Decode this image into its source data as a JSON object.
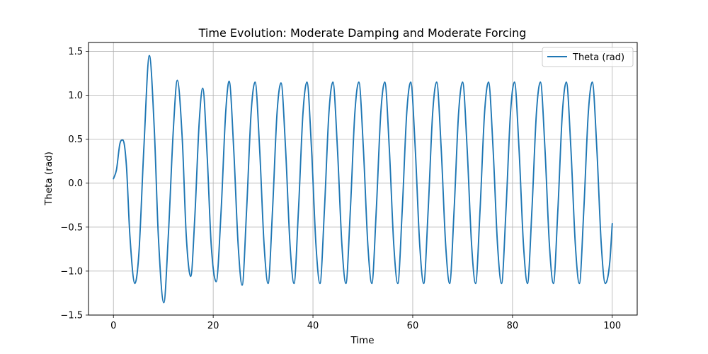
{
  "chart_data": {
    "type": "line",
    "title": "Time Evolution: Moderate Damping and Moderate Forcing",
    "xlabel": "Time",
    "ylabel": "Theta (rad)",
    "xlim": [
      -5,
      105
    ],
    "ylim": [
      -1.5,
      1.6
    ],
    "xticks": [
      0,
      20,
      40,
      60,
      80,
      100
    ],
    "yticks": [
      -1.5,
      -1.0,
      -0.5,
      0.0,
      0.5,
      1.0,
      1.5
    ],
    "xtick_labels": [
      "0",
      "20",
      "40",
      "60",
      "80",
      "100"
    ],
    "ytick_labels": [
      "−1.5",
      "−1.0",
      "−0.5",
      "0.0",
      "0.5",
      "1.0",
      "1.5"
    ],
    "grid": true,
    "legend_position": "top-right",
    "series": [
      {
        "name": "Theta (rad)",
        "color": "#1f77b4",
        "points": [
          [
            0,
            0.05
          ],
          [
            0.6,
            0.15
          ],
          [
            1.3,
            0.45
          ],
          [
            1.9,
            0.49
          ],
          [
            2.6,
            0.2
          ],
          [
            3.3,
            -0.6
          ],
          [
            4.3,
            -1.14
          ],
          [
            5.1,
            -0.8
          ],
          [
            6.1,
            0.4
          ],
          [
            7.2,
            1.45
          ],
          [
            8.2,
            0.6
          ],
          [
            9.0,
            -0.6
          ],
          [
            10.1,
            -1.36
          ],
          [
            11.0,
            -0.6
          ],
          [
            12.0,
            0.6
          ],
          [
            12.8,
            1.17
          ],
          [
            13.8,
            0.5
          ],
          [
            14.6,
            -0.6
          ],
          [
            15.5,
            -1.06
          ],
          [
            16.3,
            -0.4
          ],
          [
            17.2,
            0.7
          ],
          [
            17.9,
            1.08
          ],
          [
            18.8,
            0.3
          ],
          [
            19.6,
            -0.7
          ],
          [
            20.6,
            -1.12
          ],
          [
            21.6,
            -0.3
          ],
          [
            22.5,
            0.8
          ],
          [
            23.2,
            1.16
          ],
          [
            24.1,
            0.4
          ],
          [
            25.0,
            -0.7
          ],
          [
            25.8,
            -1.16
          ],
          [
            26.7,
            -0.3
          ],
          [
            27.6,
            0.8
          ],
          [
            28.4,
            1.15
          ],
          [
            29.3,
            0.4
          ],
          [
            30.2,
            -0.7
          ],
          [
            31.0,
            -1.14
          ],
          [
            31.9,
            -0.3
          ],
          [
            32.8,
            0.8
          ],
          [
            33.6,
            1.14
          ],
          [
            34.5,
            0.4
          ],
          [
            35.4,
            -0.7
          ],
          [
            36.2,
            -1.14
          ],
          [
            37.1,
            -0.3
          ],
          [
            38.0,
            0.8
          ],
          [
            38.8,
            1.15
          ],
          [
            39.7,
            0.4
          ],
          [
            40.6,
            -0.7
          ],
          [
            41.4,
            -1.14
          ],
          [
            42.3,
            -0.3
          ],
          [
            43.2,
            0.8
          ],
          [
            44.0,
            1.15
          ],
          [
            44.9,
            0.4
          ],
          [
            45.8,
            -0.7
          ],
          [
            46.6,
            -1.14
          ],
          [
            47.5,
            -0.3
          ],
          [
            48.4,
            0.8
          ],
          [
            49.2,
            1.15
          ],
          [
            50.1,
            0.4
          ],
          [
            51.0,
            -0.7
          ],
          [
            51.8,
            -1.14
          ],
          [
            52.7,
            -0.3
          ],
          [
            53.6,
            0.8
          ],
          [
            54.4,
            1.15
          ],
          [
            55.3,
            0.4
          ],
          [
            56.2,
            -0.7
          ],
          [
            57.0,
            -1.14
          ],
          [
            57.9,
            -0.3
          ],
          [
            58.8,
            0.8
          ],
          [
            59.6,
            1.15
          ],
          [
            60.5,
            0.4
          ],
          [
            61.4,
            -0.7
          ],
          [
            62.2,
            -1.14
          ],
          [
            63.1,
            -0.3
          ],
          [
            64.0,
            0.8
          ],
          [
            64.8,
            1.15
          ],
          [
            65.7,
            0.4
          ],
          [
            66.6,
            -0.7
          ],
          [
            67.4,
            -1.14
          ],
          [
            68.3,
            -0.3
          ],
          [
            69.2,
            0.8
          ],
          [
            70.0,
            1.15
          ],
          [
            70.9,
            0.4
          ],
          [
            71.8,
            -0.7
          ],
          [
            72.6,
            -1.14
          ],
          [
            73.5,
            -0.3
          ],
          [
            74.4,
            0.8
          ],
          [
            75.2,
            1.15
          ],
          [
            76.1,
            0.4
          ],
          [
            77.0,
            -0.7
          ],
          [
            77.8,
            -1.14
          ],
          [
            78.7,
            -0.3
          ],
          [
            79.6,
            0.8
          ],
          [
            80.4,
            1.15
          ],
          [
            81.3,
            0.4
          ],
          [
            82.2,
            -0.7
          ],
          [
            83.0,
            -1.14
          ],
          [
            83.9,
            -0.3
          ],
          [
            84.8,
            0.8
          ],
          [
            85.6,
            1.15
          ],
          [
            86.5,
            0.4
          ],
          [
            87.4,
            -0.7
          ],
          [
            88.2,
            -1.14
          ],
          [
            89.1,
            -0.3
          ],
          [
            90.0,
            0.8
          ],
          [
            90.8,
            1.15
          ],
          [
            91.7,
            0.4
          ],
          [
            92.6,
            -0.7
          ],
          [
            93.4,
            -1.14
          ],
          [
            94.3,
            -0.3
          ],
          [
            95.2,
            0.8
          ],
          [
            96.0,
            1.15
          ],
          [
            96.9,
            0.4
          ],
          [
            97.8,
            -0.7
          ],
          [
            98.6,
            -1.14
          ],
          [
            99.5,
            -0.9
          ],
          [
            100.0,
            -0.46
          ]
        ]
      }
    ]
  }
}
